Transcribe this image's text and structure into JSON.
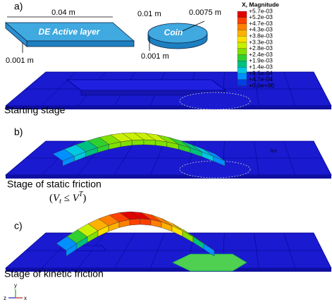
{
  "panel_a": {
    "label": "a)",
    "dims": [
      "0.04 m",
      "0.01 m",
      "0.0075 m",
      "0.001 m",
      "0.001 m"
    ],
    "layer_label": "DE Active layer",
    "coin_label": "Coin"
  },
  "legend": {
    "title": "X, Magnitude",
    "labels": [
      "+5.7e-03",
      "+5.2e-03",
      "+4.7e-03",
      "+4.3e-03",
      "+3.8e-03",
      "+3.3e-03",
      "+2.8e-03",
      "+2.4e-03",
      "+1.9e-03",
      "+1.4e-03",
      "+9.5e-04",
      "+4.7e-04",
      "+0.0e+00"
    ]
  },
  "stages": [
    {
      "caption": "Starting stage"
    },
    {
      "label": "b)",
      "caption": "Stage of static friction",
      "formula": [
        "(",
        "V",
        "t",
        " ≤ ",
        "V",
        "T",
        ")"
      ],
      "note": "Test"
    },
    {
      "label": "c)",
      "caption": "Stage of kinetic friction"
    }
  ],
  "triad": [
    "y",
    "z",
    "x"
  ]
}
